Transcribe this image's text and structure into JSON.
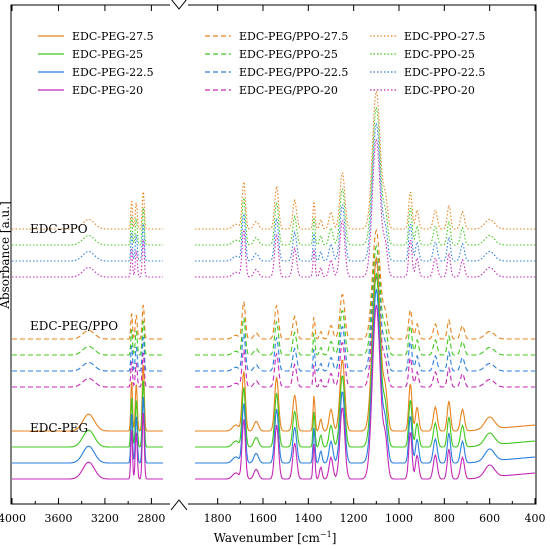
{
  "chart_data": {
    "type": "line",
    "xlabel": "Wavenumber [cm",
    "xlabel_sup": "−1",
    "xlabel_end": "]",
    "ylabel": "Absorbance [a.u.]",
    "x_reversed": true,
    "axis_break": [
      2700,
      1900
    ],
    "xlim": [
      4000,
      400
    ],
    "x_ticks": [
      4000,
      3600,
      3200,
      2800,
      1800,
      1600,
      1400,
      1200,
      1000,
      800,
      600,
      400
    ],
    "grid": false,
    "legend_position": "top",
    "group_labels": [
      "EDC-PPO",
      "EDC-PEG/PPO",
      "EDC-PEG"
    ],
    "series_colors": {
      "27.5": "#e8821e",
      "25": "#41c81e",
      "22.5": "#2a7fe0",
      "20": "#c428b8"
    },
    "legend": [
      {
        "label": "EDC-PEG-27.5",
        "style": "solid",
        "color": "#e8821e"
      },
      {
        "label": "EDC-PEG-25",
        "style": "solid",
        "color": "#41c81e"
      },
      {
        "label": "EDC-PEG-22.5",
        "style": "solid",
        "color": "#2a7fe0"
      },
      {
        "label": "EDC-PEG-20",
        "style": "solid",
        "color": "#c428b8"
      },
      {
        "label": "EDC-PEG/PPO-27.5",
        "style": "dashed",
        "color": "#e8821e"
      },
      {
        "label": "EDC-PEG/PPO-25",
        "style": "dashed",
        "color": "#41c81e"
      },
      {
        "label": "EDC-PEG/PPO-22.5",
        "style": "dashed",
        "color": "#2a7fe0"
      },
      {
        "label": "EDC-PEG/PPO-20",
        "style": "dashed",
        "color": "#c428b8"
      },
      {
        "label": "EDC-PPO-27.5",
        "style": "dotted",
        "color": "#e8821e"
      },
      {
        "label": "EDC-PPO-25",
        "style": "dotted",
        "color": "#41c81e"
      },
      {
        "label": "EDC-PPO-22.5",
        "style": "dotted",
        "color": "#2a7fe0"
      },
      {
        "label": "EDC-PPO-20",
        "style": "dotted",
        "color": "#c428b8"
      }
    ],
    "peaks": [
      {
        "x": 3340,
        "h": 0.1,
        "w": 70
      },
      {
        "x": 2970,
        "h": 0.3,
        "w": 10
      },
      {
        "x": 2930,
        "h": 0.28,
        "w": 12
      },
      {
        "x": 2870,
        "h": 0.4,
        "w": 12
      },
      {
        "x": 1720,
        "h": 0.05,
        "w": 20
      },
      {
        "x": 1685,
        "h": 0.5,
        "w": 10
      },
      {
        "x": 1630,
        "h": 0.08,
        "w": 14
      },
      {
        "x": 1540,
        "h": 0.45,
        "w": 12
      },
      {
        "x": 1460,
        "h": 0.3,
        "w": 12
      },
      {
        "x": 1375,
        "h": 0.3,
        "w": 6
      },
      {
        "x": 1345,
        "h": 0.1,
        "w": 8
      },
      {
        "x": 1300,
        "h": 0.18,
        "w": 12
      },
      {
        "x": 1250,
        "h": 0.6,
        "w": 15
      },
      {
        "x": 1100,
        "h": 1.45,
        "w": 24
      },
      {
        "x": 1060,
        "h": 0.3,
        "w": 14
      },
      {
        "x": 950,
        "h": 0.4,
        "w": 10
      },
      {
        "x": 920,
        "h": 0.2,
        "w": 10
      },
      {
        "x": 840,
        "h": 0.2,
        "w": 12
      },
      {
        "x": 780,
        "h": 0.25,
        "w": 10
      },
      {
        "x": 720,
        "h": 0.18,
        "w": 12
      },
      {
        "x": 600,
        "h": 0.1,
        "w": 30
      }
    ]
  }
}
